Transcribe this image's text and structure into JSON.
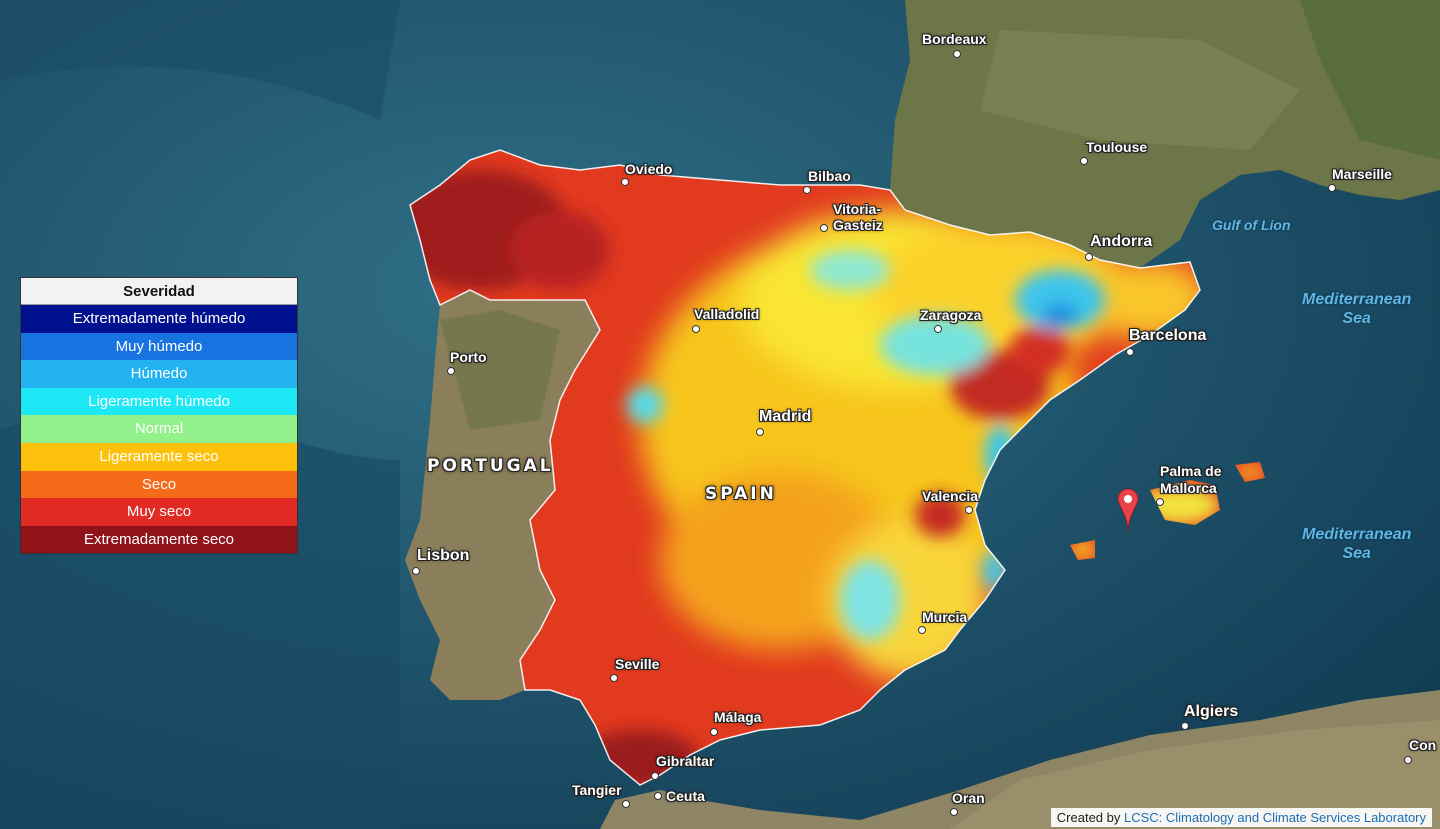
{
  "legend": {
    "title": "Severidad",
    "items": [
      {
        "label": "Extremadamente húmedo",
        "color": "#00118f"
      },
      {
        "label": "Muy húmedo",
        "color": "#1673e0"
      },
      {
        "label": "Húmedo",
        "color": "#22b2f0"
      },
      {
        "label": "Ligeramente húmedo",
        "color": "#1ce8f6"
      },
      {
        "label": "Normal",
        "color": "#93f18c"
      },
      {
        "label": "Ligeramente seco",
        "color": "#fdc10c"
      },
      {
        "label": "Seco",
        "color": "#f56a18"
      },
      {
        "label": "Muy seco",
        "color": "#e02a23"
      },
      {
        "label": "Extremadamente seco",
        "color": "#8f1318"
      }
    ]
  },
  "cities": {
    "bordeaux": "Bordeaux",
    "toulouse": "Toulouse",
    "marseille": "Marseille",
    "andorra": "Andorra",
    "oviedo": "Oviedo",
    "bilbao": "Bilbao",
    "vitoria": "Vitoria-\nGasteiz",
    "valladolid": "Valladolid",
    "zaragoza": "Zaragoza",
    "barcelona": "Barcelona",
    "porto": "Porto",
    "madrid": "Madrid",
    "valencia": "Valencia",
    "palma": "Palma de\nMallorca",
    "lisbon": "Lisbon",
    "murcia": "Murcia",
    "seville": "Seville",
    "malaga": "Málaga",
    "gibraltar": "Gibraltar",
    "tangier": "Tangier",
    "ceuta": "Ceuta",
    "algiers": "Algiers",
    "oran": "Oran",
    "con": "Con"
  },
  "countries": {
    "portugal": "PORTUGAL",
    "spain": "SPAIN"
  },
  "seas": {
    "gulf_lion": "Gulf of Lion",
    "med1": "Mediterranean\nSea",
    "med2": "Mediterranean\nSea"
  },
  "attribution": {
    "prefix": "Created by ",
    "link": "LCSC: Climatology and Climate Services Laboratory"
  }
}
